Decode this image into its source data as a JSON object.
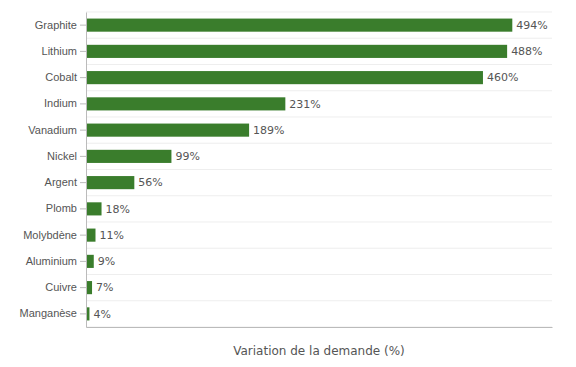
{
  "chart_data": {
    "type": "bar",
    "orientation": "horizontal",
    "xlabel": "Variation de la demande (%)",
    "categories": [
      "Graphite",
      "Lithium",
      "Cobalt",
      "Indium",
      "Vanadium",
      "Nickel",
      "Argent",
      "Plomb",
      "Molybdène",
      "Aluminium",
      "Cuivre",
      "Manganèse"
    ],
    "values": [
      494,
      488,
      460,
      231,
      189,
      99,
      56,
      18,
      11,
      9,
      7,
      4
    ],
    "value_labels": [
      "494%",
      "488%",
      "460%",
      "231%",
      "189%",
      "99%",
      "56%",
      "18%",
      "11%",
      "9%",
      "7%",
      "4%"
    ],
    "data_labels": true,
    "color": "#3a7d2c",
    "xlim": [
      0,
      540
    ],
    "tick_labels": "y",
    "grid": false
  }
}
